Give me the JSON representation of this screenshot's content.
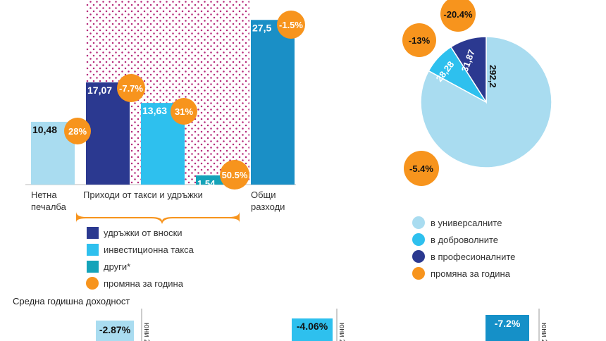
{
  "chart_data": [
    {
      "type": "bar",
      "categories": [
        "Нетна печалба",
        "удръжки от вноски",
        "инвестиционна такса",
        "други*",
        "Общи разходи"
      ],
      "values": [
        10.48,
        17.07,
        13.63,
        1.54,
        27.5
      ],
      "value_labels": [
        "10,48",
        "17,07",
        "13,63",
        "1,54",
        "27,5"
      ],
      "changes": [
        "28%",
        "-7.7%",
        "31%",
        "50.5%",
        "-1.5%"
      ],
      "axis_labels": {
        "net_profit": [
          "Нетна",
          "печалба"
        ],
        "fees_group": "Приходи от такси и удръжки",
        "total_costs": [
          "Общи",
          "разходи"
        ]
      },
      "legend": [
        {
          "label": "удръжки от вноски",
          "color": "#2b3990"
        },
        {
          "label": "инвестиционна такса",
          "color": "#2ec0ee"
        },
        {
          "label": "други*",
          "color": "#14a3b9"
        },
        {
          "label": "промяна за година",
          "color": "#f7941d"
        }
      ]
    },
    {
      "type": "pie",
      "labels": [
        "в универсалните",
        "в доброволните",
        "в професионалните"
      ],
      "values": [
        292.2,
        28.28,
        31.87
      ],
      "value_labels": [
        "292,2",
        "28,28",
        "31,87"
      ],
      "changes": [
        "-5.4%",
        "-13%",
        "-20.4%"
      ],
      "colors": [
        "#a9dcf0",
        "#2ec0ee",
        "#2b3990"
      ],
      "legend": [
        {
          "label": "в универсалните",
          "color": "#a9dcf0"
        },
        {
          "label": "в доброволните",
          "color": "#2ec0ee"
        },
        {
          "label": "в професионалните",
          "color": "#2b3990"
        },
        {
          "label": "промяна за година",
          "color": "#f7941d"
        }
      ]
    },
    {
      "type": "bar",
      "title": "Средна годишна доходност",
      "values": [
        -2.87,
        -4.06,
        -7.2
      ],
      "value_labels": [
        "-2.87%",
        "-4.06%",
        "-7.2%"
      ],
      "period_labels": [
        "юни 2010",
        "юни 2010",
        "юни 2010"
      ],
      "colors": [
        "#a9dcf0",
        "#2ec0ee",
        "#1590c8"
      ]
    }
  ],
  "colors": {
    "dark_blue": "#2b3990",
    "cyan": "#2ec0ee",
    "teal": "#14a3b9",
    "light_blue": "#a9dcf0",
    "total_blue": "#1a8fc6",
    "orange": "#f7941d",
    "dots": "#b5297a"
  }
}
